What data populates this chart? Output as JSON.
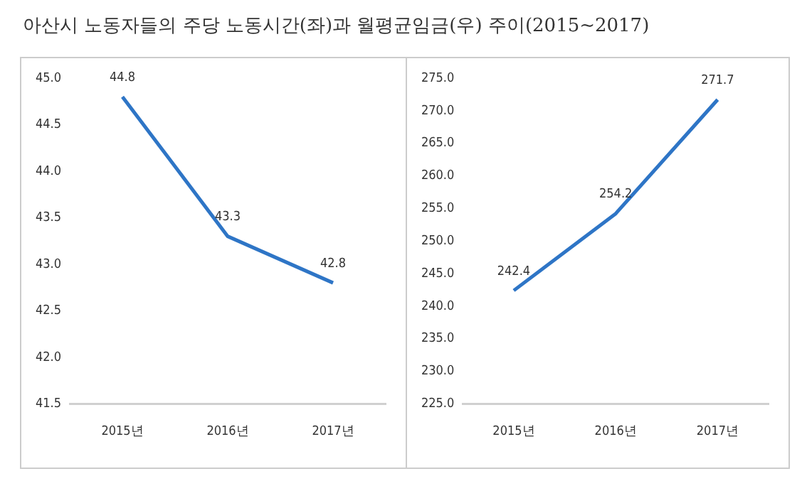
{
  "chart_data": [
    {
      "type": "line",
      "title": "아산시 노동자들의 주당 노동시간(좌)과 월평균임금(우) 주이(2015~2017)",
      "categories": [
        "2015년",
        "2016년",
        "2017년"
      ],
      "series": [
        {
          "color": "#2e75c6",
          "values": [
            44.8,
            43.3,
            42.8
          ]
        }
      ],
      "ylim": [
        41.5,
        45
      ],
      "yticks": [
        {
          "value": 41.5,
          "label": "41.5"
        },
        {
          "value": 42,
          "label": "42.0"
        },
        {
          "value": 42.5,
          "label": "42.5"
        },
        {
          "value": 43,
          "label": "43.0"
        },
        {
          "value": 43.5,
          "label": "43.5"
        },
        {
          "value": 44,
          "label": "44.0"
        },
        {
          "value": 44.5,
          "label": "44.5"
        },
        {
          "value": 45,
          "label": "45.0"
        }
      ],
      "grid": false,
      "legend": false,
      "marker": "none",
      "line_style": "solid",
      "data_labels": true
    },
    {
      "type": "line",
      "categories": [
        "2015년",
        "2016년",
        "2017년"
      ],
      "series": [
        {
          "color": "#2e75c6",
          "values": [
            242.4,
            254.2,
            271.7
          ]
        }
      ],
      "ylim": [
        225,
        275
      ],
      "yticks": [
        {
          "value": 225,
          "label": "225.0"
        },
        {
          "value": 230,
          "label": "230.0"
        },
        {
          "value": 235,
          "label": "235.0"
        },
        {
          "value": 240,
          "label": "240.0"
        },
        {
          "value": 245,
          "label": "245.0"
        },
        {
          "value": 250,
          "label": "250.0"
        },
        {
          "value": 255,
          "label": "255.0"
        },
        {
          "value": 260,
          "label": "260.0"
        },
        {
          "value": 265,
          "label": "265.0"
        },
        {
          "value": 270,
          "label": "270.0"
        },
        {
          "value": 275,
          "label": "275.0"
        }
      ],
      "grid": false,
      "legend": false,
      "marker": "none",
      "line_style": "solid",
      "data_labels": true
    }
  ]
}
